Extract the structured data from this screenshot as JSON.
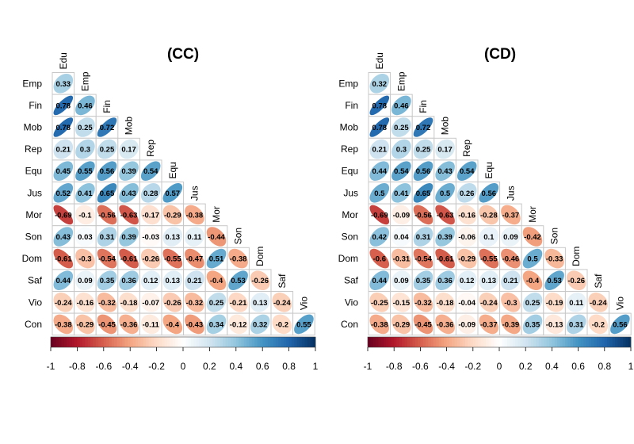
{
  "chart_data": [
    {
      "type": "heatmap",
      "title": "(CC)",
      "variables": [
        "Edu",
        "Emp",
        "Fin",
        "Mob",
        "Rep",
        "Equ",
        "Jus",
        "Mor",
        "Son",
        "Dom",
        "Saf",
        "Vio",
        "Con"
      ],
      "row_labels": [
        "Emp",
        "Fin",
        "Mob",
        "Rep",
        "Equ",
        "Jus",
        "Mor",
        "Son",
        "Dom",
        "Saf",
        "Vio",
        "Con"
      ],
      "col_labels": [
        "Edu",
        "Emp",
        "Fin",
        "Mob",
        "Rep",
        "Equ",
        "Jus",
        "Mor",
        "Son",
        "Dom",
        "Saf",
        "Vio"
      ],
      "values": [
        [
          0.33
        ],
        [
          0.78,
          0.46
        ],
        [
          0.78,
          0.25,
          0.72
        ],
        [
          0.21,
          0.3,
          0.25,
          0.17
        ],
        [
          0.45,
          0.55,
          0.56,
          0.39,
          0.54
        ],
        [
          0.52,
          0.41,
          0.65,
          0.43,
          0.28,
          0.57
        ],
        [
          -0.69,
          -0.1,
          -0.56,
          -0.63,
          -0.17,
          -0.29,
          -0.38
        ],
        [
          0.43,
          0.03,
          0.31,
          0.39,
          -0.03,
          0.13,
          0.11,
          -0.44
        ],
        [
          -0.61,
          -0.3,
          -0.54,
          -0.61,
          -0.26,
          -0.55,
          -0.47,
          0.51,
          -0.38
        ],
        [
          0.44,
          0.09,
          0.35,
          0.36,
          0.12,
          0.13,
          0.21,
          -0.4,
          0.53,
          -0.26
        ],
        [
          -0.24,
          -0.16,
          -0.32,
          -0.18,
          -0.07,
          -0.26,
          -0.32,
          0.25,
          -0.21,
          0.13,
          -0.24
        ],
        [
          -0.38,
          -0.29,
          -0.45,
          -0.36,
          -0.11,
          -0.4,
          -0.43,
          0.34,
          -0.12,
          0.32,
          -0.2,
          0.55
        ]
      ],
      "color_scale": {
        "range": [
          -1,
          1
        ],
        "ticks": [
          "-1",
          "-0.8",
          "-0.6",
          "-0.4",
          "-0.2",
          "0",
          "0.2",
          "0.4",
          "0.6",
          "0.8",
          "1"
        ],
        "colors": [
          "#67001F",
          "#B2182B",
          "#D6604D",
          "#F4A582",
          "#FDDBC7",
          "#FFFFFF",
          "#D1E5F0",
          "#92C5DE",
          "#4393C3",
          "#2166AC",
          "#053061"
        ]
      }
    },
    {
      "type": "heatmap",
      "title": "(CD)",
      "variables": [
        "Edu",
        "Emp",
        "Fin",
        "Mob",
        "Rep",
        "Equ",
        "Jus",
        "Mor",
        "Son",
        "Dom",
        "Saf",
        "Vio",
        "Con"
      ],
      "row_labels": [
        "Emp",
        "Fin",
        "Mob",
        "Rep",
        "Equ",
        "Jus",
        "Mor",
        "Son",
        "Dom",
        "Saf",
        "Vio",
        "Con"
      ],
      "col_labels": [
        "Edu",
        "Emp",
        "Fin",
        "Mob",
        "Rep",
        "Equ",
        "Jus",
        "Mor",
        "Son",
        "Dom",
        "Saf",
        "Vio"
      ],
      "values": [
        [
          0.32
        ],
        [
          0.78,
          0.46
        ],
        [
          0.78,
          0.25,
          0.72
        ],
        [
          0.21,
          0.3,
          0.25,
          0.17
        ],
        [
          0.44,
          0.54,
          0.56,
          0.43,
          0.54
        ],
        [
          0.5,
          0.41,
          0.65,
          0.5,
          0.26,
          0.56
        ],
        [
          -0.69,
          -0.09,
          -0.56,
          -0.63,
          -0.16,
          -0.28,
          -0.37
        ],
        [
          0.42,
          0.04,
          0.31,
          0.39,
          -0.06,
          0.1,
          0.09,
          -0.42
        ],
        [
          -0.6,
          -0.31,
          -0.54,
          -0.61,
          -0.29,
          -0.55,
          -0.46,
          0.5,
          -0.33
        ],
        [
          0.44,
          0.09,
          0.35,
          0.36,
          0.12,
          0.13,
          0.21,
          -0.4,
          0.53,
          -0.26
        ],
        [
          -0.25,
          -0.15,
          -0.32,
          -0.18,
          -0.04,
          -0.24,
          -0.3,
          0.25,
          -0.19,
          0.11,
          -0.24
        ],
        [
          -0.38,
          -0.29,
          -0.45,
          -0.36,
          -0.09,
          -0.37,
          -0.39,
          0.35,
          -0.13,
          0.31,
          -0.2,
          0.56
        ]
      ],
      "color_scale": {
        "range": [
          -1,
          1
        ],
        "ticks": [
          "-1",
          "-0.8",
          "-0.6",
          "-0.4",
          "-0.2",
          "0",
          "0.2",
          "0.4",
          "0.6",
          "0.8",
          "1"
        ],
        "colors": [
          "#67001F",
          "#B2182B",
          "#D6604D",
          "#F4A582",
          "#FDDBC7",
          "#FFFFFF",
          "#D1E5F0",
          "#92C5DE",
          "#4393C3",
          "#2166AC",
          "#053061"
        ]
      }
    }
  ]
}
